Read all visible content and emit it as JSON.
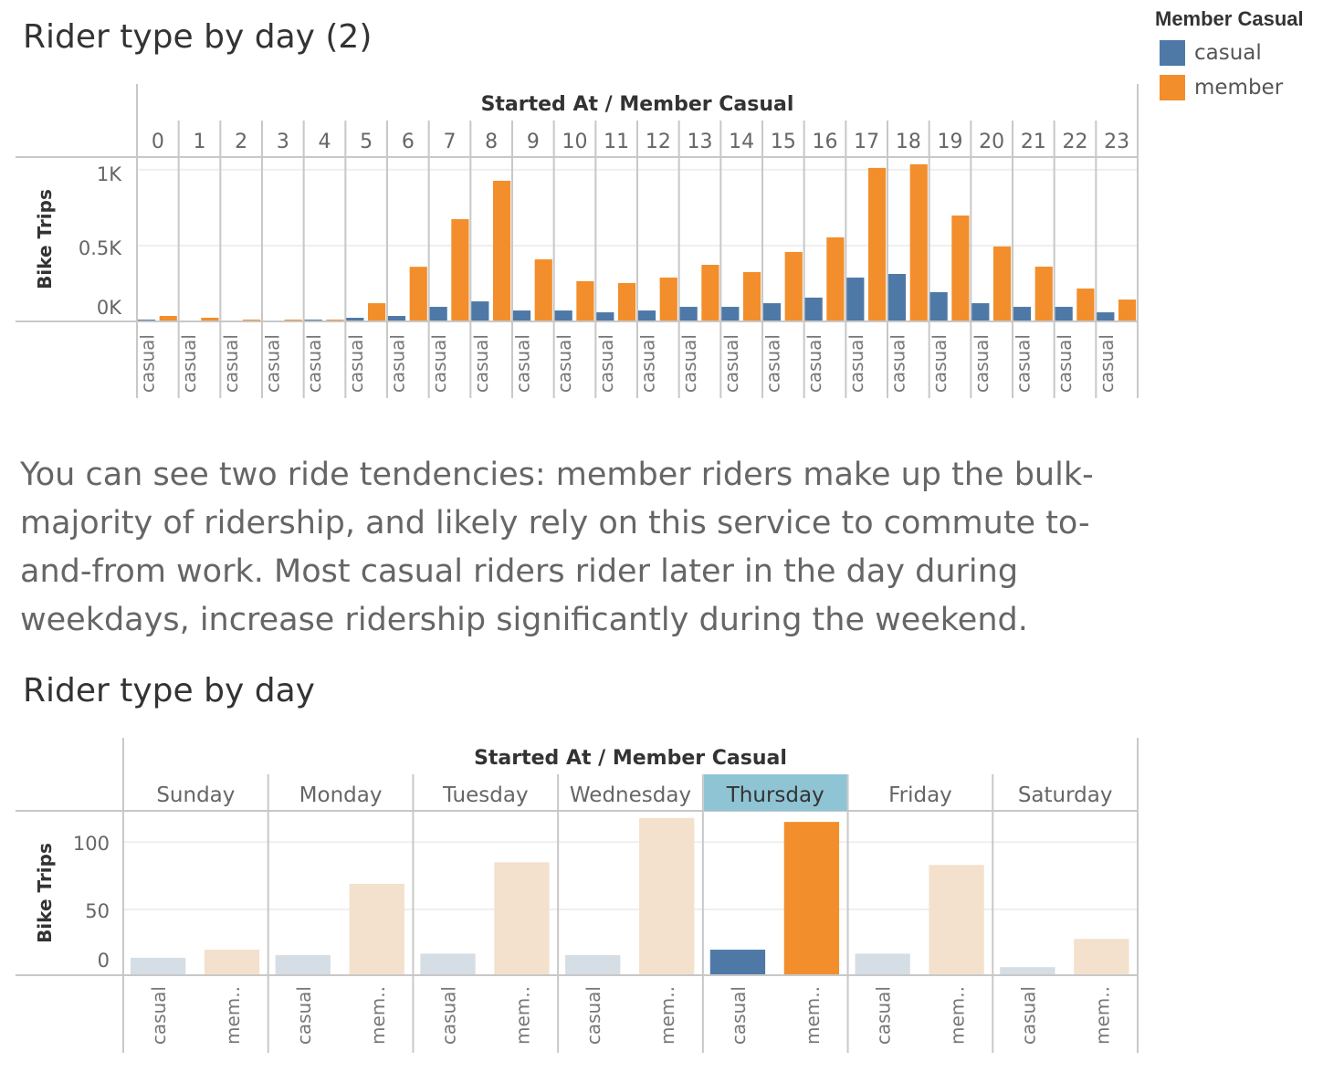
{
  "legend": {
    "title": "Member Casual",
    "items": [
      {
        "label": "casual",
        "color": "#4e79a7"
      },
      {
        "label": "member",
        "color": "#f28e2b"
      }
    ]
  },
  "paragraph": "You can see two ride tendencies: member riders make up the bulk-majority of ridership, and likely rely on this service to commute to-and-from work. Most casual riders rider later in the day during weekdays, increase ridership significantly during the weekend.",
  "chart_data": [
    {
      "type": "bar",
      "title": "Rider type by day (2)",
      "column_header": "Started At  /  Member Casual",
      "ylabel": "Bike Trips",
      "yticks": [
        {
          "value": 0,
          "label": "0K"
        },
        {
          "value": 500,
          "label": "0.5K"
        },
        {
          "value": 1000,
          "label": "1K"
        }
      ],
      "ylim": [
        0,
        1090
      ],
      "grid": true,
      "categories": [
        "0",
        "1",
        "2",
        "3",
        "4",
        "5",
        "6",
        "7",
        "8",
        "9",
        "10",
        "11",
        "12",
        "13",
        "14",
        "15",
        "16",
        "17",
        "18",
        "19",
        "20",
        "21",
        "22",
        "23"
      ],
      "sub_label": "casual",
      "series": [
        {
          "name": "casual",
          "color": "#4e79a7",
          "values": [
            12,
            0,
            0,
            0,
            12,
            24,
            36,
            96,
            132,
            72,
            72,
            60,
            72,
            96,
            96,
            120,
            157,
            289,
            313,
            193,
            120,
            96,
            96,
            60
          ]
        },
        {
          "name": "member",
          "color": "#f28e2b",
          "values": [
            36,
            24,
            12,
            12,
            12,
            120,
            360,
            674,
            927,
            409,
            265,
            253,
            289,
            373,
            325,
            458,
            554,
            1012,
            1036,
            698,
            494,
            361,
            217,
            144
          ]
        }
      ]
    },
    {
      "type": "bar",
      "title": "Rider type by day",
      "column_header": "Started At  /  Member Casual",
      "ylabel": "Bike Trips",
      "yticks": [
        {
          "value": 0,
          "label": "0"
        },
        {
          "value": 50,
          "label": "50"
        },
        {
          "value": 100,
          "label": "100"
        }
      ],
      "ylim": [
        0,
        122
      ],
      "grid": true,
      "categories": [
        "Sunday",
        "Monday",
        "Tuesday",
        "Wednesday",
        "Thursday",
        "Friday",
        "Saturday"
      ],
      "sub_labels": [
        "casual",
        "mem.."
      ],
      "highlighted": "Thursday",
      "highlight_color": "#8fc4d4",
      "faded_colors": {
        "casual": "#d5dde5",
        "member": "#f3e1cd"
      },
      "series": [
        {
          "name": "casual",
          "color": "#4e79a7",
          "values": [
            14,
            16,
            17,
            16,
            20,
            17,
            7
          ]
        },
        {
          "name": "member",
          "color": "#f28e2b",
          "values": [
            20,
            69,
            85,
            118,
            115,
            83,
            28
          ]
        }
      ]
    }
  ]
}
